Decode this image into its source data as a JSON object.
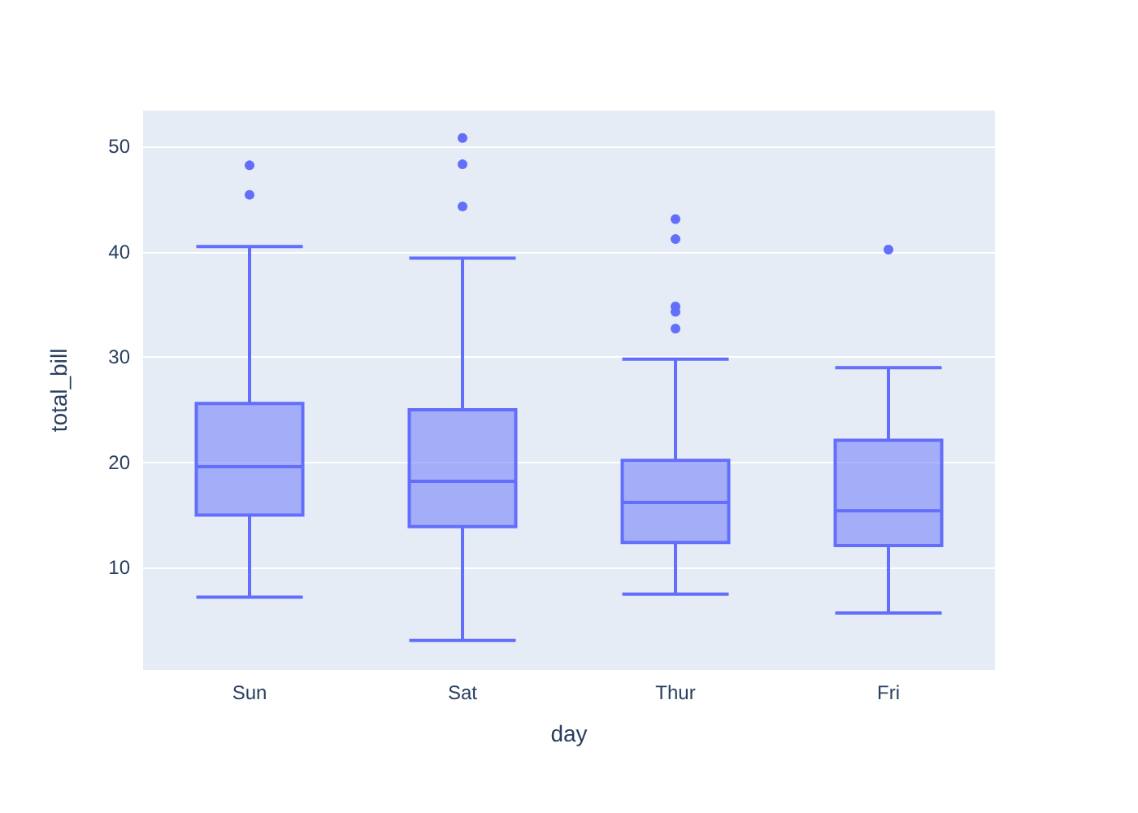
{
  "chart_data": {
    "type": "box",
    "xlabel": "day",
    "ylabel": "total_bill",
    "categories": [
      "Sun",
      "Sat",
      "Thur",
      "Fri"
    ],
    "series": [
      {
        "color": "#636efa",
        "boxes": [
          {
            "low": 7.2,
            "q1": 15.0,
            "median": 19.6,
            "q3": 25.6,
            "high": 40.5,
            "outliers": [
              45.4,
              48.2
            ]
          },
          {
            "low": 3.1,
            "q1": 13.9,
            "median": 18.2,
            "q3": 25.0,
            "high": 39.4,
            "outliers": [
              44.3,
              48.3,
              50.8
            ]
          },
          {
            "low": 7.5,
            "q1": 12.4,
            "median": 16.2,
            "q3": 20.2,
            "high": 29.8,
            "outliers": [
              32.7,
              34.3,
              34.8,
              41.2,
              43.1
            ]
          },
          {
            "low": 5.7,
            "q1": 12.1,
            "median": 15.4,
            "q3": 22.1,
            "high": 29.0,
            "outliers": [
              40.2
            ]
          }
        ]
      }
    ],
    "ylim": [
      0.3,
      53.4
    ],
    "yticks": [
      10,
      20,
      30,
      40,
      50
    ],
    "grid": "y"
  }
}
